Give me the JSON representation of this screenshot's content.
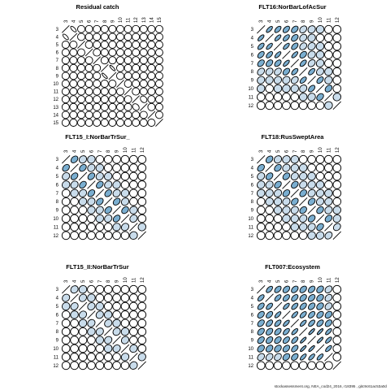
{
  "footer": "stockassessment.org, NEA_cod24_2016, r18395 , gitc9c61ac53a0d",
  "colors": {
    "ellipse_positive_fill": "#7aaed0",
    "ellipse_weak_fill": "#c9dceb",
    "outline": "#000000",
    "background": "#ffffff"
  },
  "chart_data": [
    {
      "type": "heatmap",
      "title": "Residual catch",
      "ages": [
        "3",
        "4",
        "5",
        "6",
        "7",
        "8",
        "9",
        "10",
        "11",
        "12",
        "13",
        "14",
        "15"
      ],
      "correlation_matrix": [
        [
          1,
          -0.9,
          0,
          0,
          0,
          0,
          0,
          0,
          0,
          0,
          0,
          0,
          0
        ],
        [
          -0.9,
          1,
          0,
          0,
          0,
          0,
          0,
          0,
          0,
          0,
          0,
          0,
          0
        ],
        [
          0,
          0,
          1,
          0,
          0,
          0,
          0,
          0,
          0,
          0,
          0,
          0,
          0
        ],
        [
          0,
          0,
          0,
          1,
          0,
          0,
          0,
          0,
          0,
          0,
          0,
          0,
          0
        ],
        [
          0,
          0,
          0,
          0,
          1,
          0,
          0,
          0,
          0,
          0,
          0,
          0,
          0
        ],
        [
          0,
          0,
          0,
          0,
          0,
          1,
          -0.95,
          0,
          0,
          0,
          0,
          0,
          0
        ],
        [
          0,
          0,
          0,
          0,
          0,
          -0.95,
          1,
          0,
          0,
          0,
          0,
          0,
          0
        ],
        [
          0,
          0,
          0,
          0,
          0,
          0,
          0,
          1,
          0,
          0,
          0,
          0,
          0
        ],
        [
          0,
          0,
          0,
          0,
          0,
          0,
          0,
          0,
          1,
          0,
          0,
          0,
          0
        ],
        [
          0,
          0,
          0,
          0,
          0,
          0,
          0,
          0,
          0,
          1,
          -0.6,
          0,
          0
        ],
        [
          0,
          0,
          0,
          0,
          0,
          0,
          0,
          0,
          0,
          -0.6,
          1,
          0,
          0
        ],
        [
          0,
          0,
          0,
          0,
          0,
          0,
          0,
          0,
          0,
          0,
          0,
          1,
          0
        ],
        [
          0,
          0,
          0,
          0,
          0,
          0,
          0,
          0,
          0,
          0,
          0,
          0,
          1
        ]
      ]
    },
    {
      "type": "heatmap",
      "title": "FLT16:NorBarLofAcSur",
      "ages": [
        "3",
        "4",
        "5",
        "6",
        "7",
        "8",
        "9",
        "10",
        "11",
        "12"
      ],
      "correlation_matrix": [
        [
          1,
          0.9,
          0.85,
          0.8,
          0.75,
          0.65,
          0.5,
          0.3,
          0.2,
          0
        ],
        [
          0.9,
          1,
          0.9,
          0.85,
          0.75,
          0.6,
          0.4,
          0.2,
          0.1,
          0
        ],
        [
          0.85,
          0.9,
          1,
          0.9,
          0.8,
          0.65,
          0.5,
          0.3,
          0.1,
          0
        ],
        [
          0.8,
          0.85,
          0.9,
          1,
          0.9,
          0.75,
          0.5,
          0.3,
          0.1,
          0
        ],
        [
          0.75,
          0.75,
          0.8,
          0.9,
          1,
          0.85,
          0.65,
          0.4,
          0.2,
          0
        ],
        [
          0.65,
          0.6,
          0.65,
          0.75,
          0.85,
          1,
          0.85,
          0.55,
          0.3,
          0
        ],
        [
          0.5,
          0.4,
          0.5,
          0.5,
          0.65,
          0.85,
          1,
          0.8,
          0.4,
          0.1
        ],
        [
          0.3,
          0.2,
          0.3,
          0.3,
          0.4,
          0.55,
          0.8,
          1,
          0.7,
          0.2
        ],
        [
          0.2,
          0.1,
          0.1,
          0.1,
          0.2,
          0.3,
          0.4,
          0.7,
          1,
          0.3
        ],
        [
          0,
          0,
          0,
          0,
          0,
          0,
          0.1,
          0.2,
          0.3,
          1
        ]
      ]
    },
    {
      "type": "heatmap",
      "title": "FLT15_I:NorBarTrSur_",
      "ages": [
        "3",
        "4",
        "5",
        "6",
        "7",
        "8",
        "9",
        "10",
        "11",
        "12"
      ],
      "correlation_matrix": [
        [
          1,
          0.7,
          0.5,
          0.35,
          0.25,
          0.15,
          0.1,
          0,
          0,
          0
        ],
        [
          0.7,
          1,
          0.7,
          0.5,
          0.35,
          0.2,
          0.1,
          0,
          0,
          0
        ],
        [
          0.5,
          0.7,
          1,
          0.7,
          0.5,
          0.35,
          0.2,
          0.1,
          0,
          0
        ],
        [
          0.35,
          0.5,
          0.7,
          1,
          0.7,
          0.5,
          0.35,
          0.2,
          0,
          0
        ],
        [
          0.25,
          0.35,
          0.5,
          0.7,
          1,
          0.7,
          0.5,
          0.35,
          0.1,
          0
        ],
        [
          0.15,
          0.2,
          0.35,
          0.5,
          0.7,
          1,
          0.7,
          0.5,
          0.2,
          0
        ],
        [
          0.1,
          0.1,
          0.2,
          0.35,
          0.5,
          0.7,
          1,
          0.7,
          0.35,
          0
        ],
        [
          0,
          0,
          0.1,
          0.2,
          0.35,
          0.5,
          0.7,
          1,
          0.5,
          0.1
        ],
        [
          0,
          0,
          0,
          0,
          0.1,
          0.2,
          0.35,
          0.5,
          1,
          0.3
        ],
        [
          0,
          0,
          0,
          0,
          0,
          0,
          0,
          0.1,
          0.3,
          1
        ]
      ]
    },
    {
      "type": "heatmap",
      "title": "FLT18:RusSweptArea",
      "ages": [
        "3",
        "4",
        "5",
        "6",
        "7",
        "8",
        "9",
        "10",
        "11",
        "12"
      ],
      "correlation_matrix": [
        [
          1,
          0.7,
          0.5,
          0.4,
          0.3,
          0.2,
          0.1,
          0.05,
          0,
          0
        ],
        [
          0.7,
          1,
          0.7,
          0.5,
          0.4,
          0.3,
          0.2,
          0.1,
          0,
          0
        ],
        [
          0.5,
          0.7,
          1,
          0.7,
          0.5,
          0.4,
          0.3,
          0.2,
          0.1,
          0
        ],
        [
          0.4,
          0.5,
          0.7,
          1,
          0.7,
          0.5,
          0.4,
          0.3,
          0.2,
          0
        ],
        [
          0.3,
          0.4,
          0.5,
          0.7,
          1,
          0.7,
          0.5,
          0.4,
          0.3,
          0.1
        ],
        [
          0.2,
          0.3,
          0.4,
          0.5,
          0.7,
          1,
          0.7,
          0.5,
          0.4,
          0.2
        ],
        [
          0.1,
          0.2,
          0.3,
          0.4,
          0.5,
          0.7,
          1,
          0.7,
          0.5,
          0.3
        ],
        [
          0.05,
          0.1,
          0.2,
          0.3,
          0.4,
          0.5,
          0.7,
          1,
          0.7,
          0.4
        ],
        [
          0,
          0,
          0.1,
          0.2,
          0.3,
          0.4,
          0.5,
          0.7,
          1,
          0.6
        ],
        [
          0,
          0,
          0,
          0,
          0.1,
          0.2,
          0.3,
          0.4,
          0.6,
          1
        ]
      ]
    },
    {
      "type": "heatmap",
      "title": "FLT15_II:NorBarTrSur",
      "ages": [
        "3",
        "4",
        "5",
        "6",
        "7",
        "8",
        "9",
        "10",
        "11",
        "12"
      ],
      "correlation_matrix": [
        [
          1,
          0.5,
          0.3,
          0.15,
          0.1,
          0.05,
          0,
          0,
          0,
          0
        ],
        [
          0.5,
          1,
          0.5,
          0.3,
          0.15,
          0.1,
          0.05,
          0,
          0,
          0
        ],
        [
          0.3,
          0.5,
          1,
          0.5,
          0.3,
          0.15,
          0.1,
          0.05,
          0,
          0
        ],
        [
          0.15,
          0.3,
          0.5,
          1,
          0.5,
          0.3,
          0.15,
          0.1,
          0,
          0
        ],
        [
          0.1,
          0.15,
          0.3,
          0.5,
          1,
          0.5,
          0.3,
          0.15,
          0.05,
          0
        ],
        [
          0.05,
          0.1,
          0.15,
          0.3,
          0.5,
          1,
          0.5,
          0.3,
          0.1,
          0
        ],
        [
          0,
          0.05,
          0.1,
          0.15,
          0.3,
          0.5,
          1,
          0.5,
          0.2,
          0
        ],
        [
          0,
          0,
          0.05,
          0.1,
          0.15,
          0.3,
          0.5,
          1,
          0.4,
          0.1
        ],
        [
          0,
          0,
          0,
          0,
          0.05,
          0.1,
          0.2,
          0.4,
          1,
          0.4
        ],
        [
          0,
          0,
          0,
          0,
          0,
          0,
          0,
          0.1,
          0.4,
          1
        ]
      ]
    },
    {
      "type": "heatmap",
      "title": "FLT007:Ecosystem",
      "ages": [
        "3",
        "4",
        "5",
        "6",
        "7",
        "8",
        "9",
        "10",
        "11",
        "12"
      ],
      "correlation_matrix": [
        [
          1,
          0.85,
          0.8,
          0.75,
          0.75,
          0.75,
          0.75,
          0.7,
          0.65,
          0
        ],
        [
          0.85,
          1,
          0.85,
          0.8,
          0.8,
          0.75,
          0.75,
          0.7,
          0.65,
          0
        ],
        [
          0.8,
          0.85,
          1,
          0.9,
          0.85,
          0.8,
          0.75,
          0.7,
          0.65,
          0
        ],
        [
          0.75,
          0.8,
          0.9,
          1,
          0.9,
          0.85,
          0.8,
          0.75,
          0.7,
          0
        ],
        [
          0.75,
          0.8,
          0.85,
          0.9,
          1,
          0.9,
          0.85,
          0.8,
          0.75,
          0
        ],
        [
          0.75,
          0.75,
          0.8,
          0.85,
          0.9,
          1,
          0.95,
          0.95,
          0.9,
          0
        ],
        [
          0.75,
          0.75,
          0.75,
          0.8,
          0.85,
          0.95,
          1,
          0.95,
          0.9,
          0
        ],
        [
          0.7,
          0.7,
          0.7,
          0.75,
          0.8,
          0.95,
          0.95,
          1,
          0.9,
          0
        ],
        [
          0.65,
          0.65,
          0.65,
          0.7,
          0.75,
          0.9,
          0.9,
          0.9,
          1,
          0
        ],
        [
          0,
          0,
          0,
          0,
          0,
          0,
          0,
          0,
          0,
          1
        ]
      ]
    }
  ]
}
